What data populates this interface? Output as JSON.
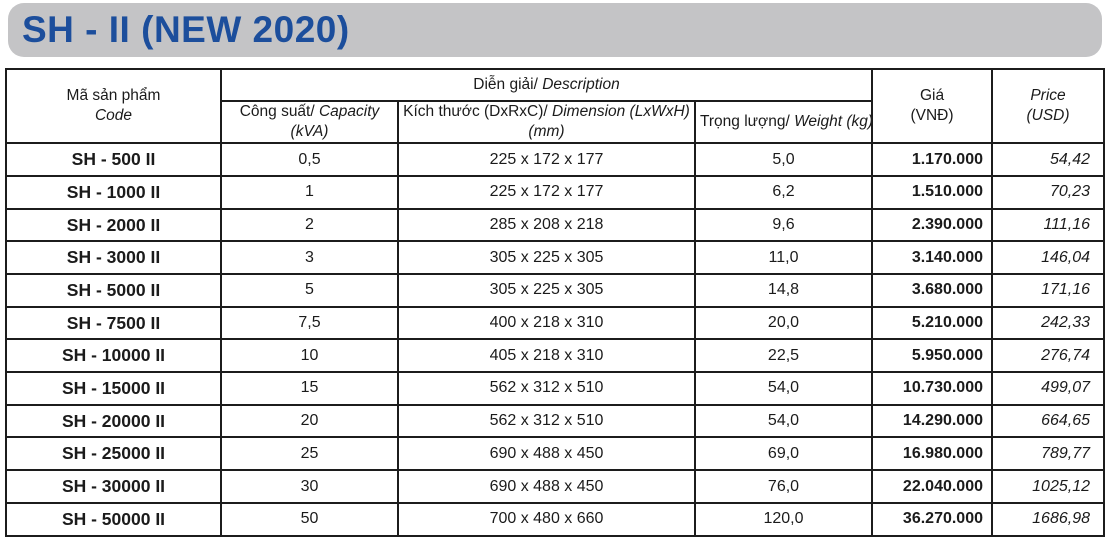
{
  "title": "SH - II (NEW 2020)",
  "colors": {
    "title_text": "#1c4e9c",
    "title_band": "#c4c4c6",
    "table_border": "#1c1c1c"
  },
  "table": {
    "headers": {
      "code_line1": "Mã sản phẩm",
      "code_line2": "Code",
      "description_vn": "Diễn giải/",
      "description_en": "Description",
      "capacity_vn": "Công suất/",
      "capacity_en": "Capacity",
      "capacity_unit": "(kVA)",
      "dimension_vn": "Kích thước (DxRxC)/",
      "dimension_en": "Dimension (LxWxH)",
      "dimension_unit": "(mm)",
      "weight_vn": "Trọng lượng/",
      "weight_en": "Weight (kg)",
      "price_vnd_line1": "Giá",
      "price_vnd_line2": "(VNĐ)",
      "price_usd_line1": "Price",
      "price_usd_line2": "(USD)"
    },
    "rows": [
      {
        "code": "SH - 500 II",
        "capacity": "0,5",
        "dimension": "225 x 172 x 177",
        "weight": "5,0",
        "price_vnd": "1.170.000",
        "price_usd": "54,42"
      },
      {
        "code": "SH - 1000 II",
        "capacity": "1",
        "dimension": "225 x 172 x 177",
        "weight": "6,2",
        "price_vnd": "1.510.000",
        "price_usd": "70,23"
      },
      {
        "code": "SH - 2000 II",
        "capacity": "2",
        "dimension": "285 x 208 x 218",
        "weight": "9,6",
        "price_vnd": "2.390.000",
        "price_usd": "111,16"
      },
      {
        "code": "SH - 3000 II",
        "capacity": "3",
        "dimension": "305 x 225 x 305",
        "weight": "11,0",
        "price_vnd": "3.140.000",
        "price_usd": "146,04"
      },
      {
        "code": "SH - 5000 II",
        "capacity": "5",
        "dimension": "305 x 225 x 305",
        "weight": "14,8",
        "price_vnd": "3.680.000",
        "price_usd": "171,16"
      },
      {
        "code": "SH - 7500 II",
        "capacity": "7,5",
        "dimension": "400 x 218 x 310",
        "weight": "20,0",
        "price_vnd": "5.210.000",
        "price_usd": "242,33"
      },
      {
        "code": "SH - 10000 II",
        "capacity": "10",
        "dimension": "405 x 218 x 310",
        "weight": "22,5",
        "price_vnd": "5.950.000",
        "price_usd": "276,74"
      },
      {
        "code": "SH - 15000 II",
        "capacity": "15",
        "dimension": "562 x 312 x 510",
        "weight": "54,0",
        "price_vnd": "10.730.000",
        "price_usd": "499,07"
      },
      {
        "code": "SH - 20000 II",
        "capacity": "20",
        "dimension": "562 x 312 x 510",
        "weight": "54,0",
        "price_vnd": "14.290.000",
        "price_usd": "664,65"
      },
      {
        "code": "SH - 25000 II",
        "capacity": "25",
        "dimension": "690 x 488 x 450",
        "weight": "69,0",
        "price_vnd": "16.980.000",
        "price_usd": "789,77"
      },
      {
        "code": "SH - 30000 II",
        "capacity": "30",
        "dimension": "690 x 488 x 450",
        "weight": "76,0",
        "price_vnd": "22.040.000",
        "price_usd": "1025,12"
      },
      {
        "code": "SH - 50000 II",
        "capacity": "50",
        "dimension": "700 x 480 x 660",
        "weight": "120,0",
        "price_vnd": "36.270.000",
        "price_usd": "1686,98"
      }
    ]
  }
}
